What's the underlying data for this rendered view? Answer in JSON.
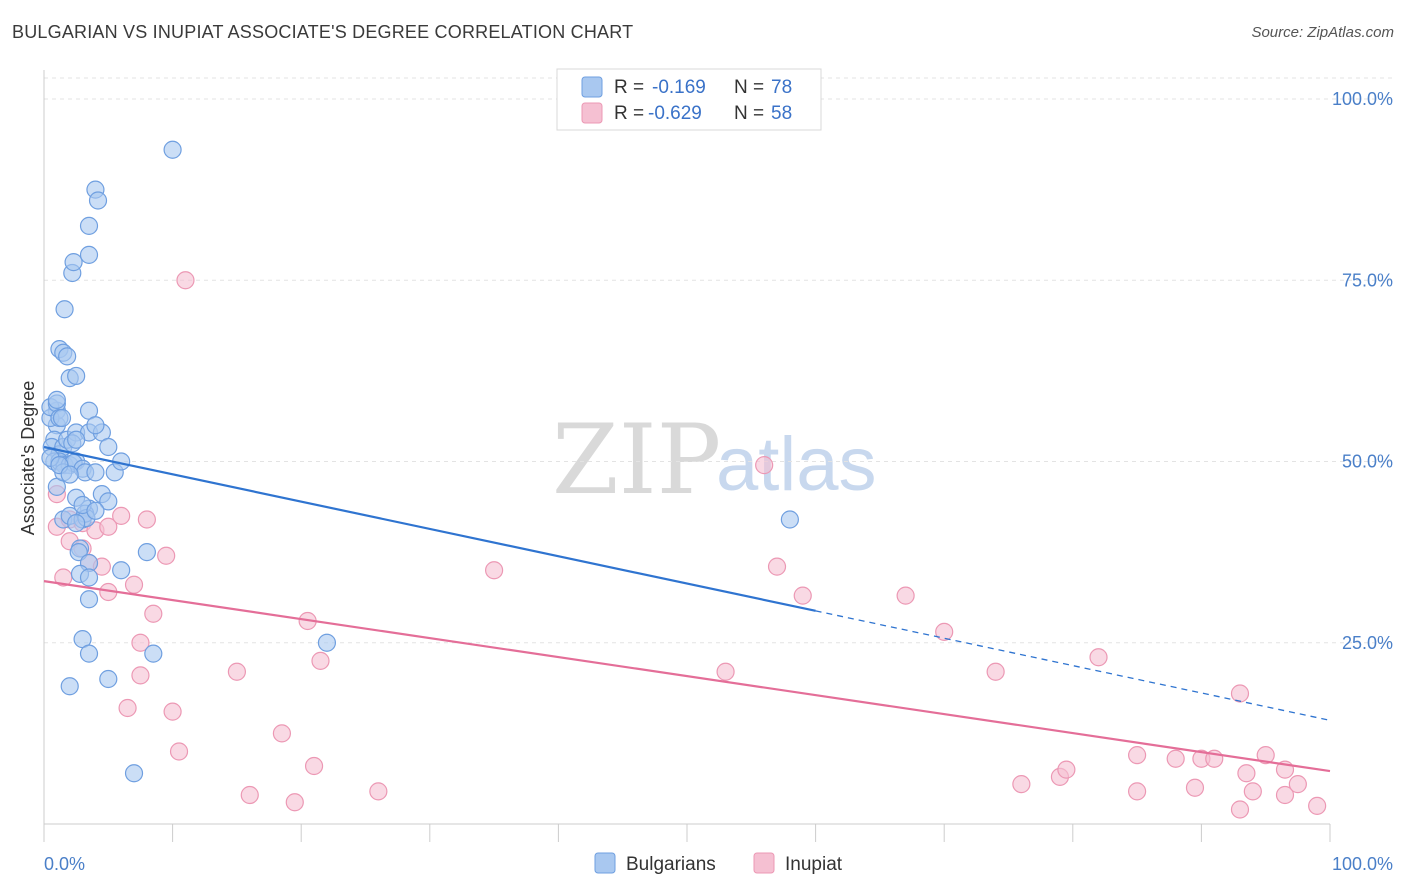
{
  "title": "BULGARIAN VS INUPIAT ASSOCIATE'S DEGREE CORRELATION CHART",
  "source": "Source: ZipAtlas.com",
  "watermark": {
    "zip": "ZIP",
    "atlas": "atlas"
  },
  "colors": {
    "blue_fill": "#a9c8f0",
    "blue_stroke": "#6f9fe0",
    "blue_line": "#2f74d0",
    "pink_fill": "#f5c0d2",
    "pink_stroke": "#ec98b4",
    "pink_line": "#e46e98",
    "grid": "#e3e3e3",
    "axis_text": "#4a7fc8"
  },
  "legend": {
    "r_label": "R =",
    "n_label": "N =",
    "rows": [
      {
        "r": "-0.169",
        "n": "78"
      },
      {
        "r": "-0.629",
        "n": "58"
      }
    ]
  },
  "chart_data": {
    "type": "scatter",
    "xlabel": "",
    "ylabel": "Associate's Degree",
    "xlim": [
      0,
      100
    ],
    "ylim": [
      0,
      104
    ],
    "x_tick_labels": [
      "0.0%",
      "100.0%"
    ],
    "y_tick_values": [
      25,
      50,
      75,
      100
    ],
    "y_tick_labels": [
      "25.0%",
      "50.0%",
      "75.0%",
      "100.0%"
    ],
    "grid": true,
    "series": [
      {
        "name": "Bulgarians",
        "color": "blue",
        "r": -0.169,
        "n": 78,
        "trend": {
          "x0": 0,
          "y0": 52.0,
          "x1": 60,
          "y1": 29.4,
          "dash_to_x": 100,
          "dash_to_y": 14.3
        },
        "points": [
          [
            1,
            55
          ],
          [
            1,
            57
          ],
          [
            0.5,
            56
          ],
          [
            0.5,
            57.5
          ],
          [
            1,
            58
          ],
          [
            1.2,
            56
          ],
          [
            1.4,
            56
          ],
          [
            0.8,
            53
          ],
          [
            0.6,
            52
          ],
          [
            1.2,
            51
          ],
          [
            1.5,
            52
          ],
          [
            1.8,
            53
          ],
          [
            2.5,
            54
          ],
          [
            3.5,
            54
          ],
          [
            4.5,
            54
          ],
          [
            2.2,
            52.5
          ],
          [
            2.5,
            53
          ],
          [
            0.8,
            50
          ],
          [
            1.2,
            50
          ],
          [
            1.6,
            49.5
          ],
          [
            2,
            49.5
          ],
          [
            2.5,
            50
          ],
          [
            2.3,
            49.8
          ],
          [
            3,
            49
          ],
          [
            3.2,
            48.5
          ],
          [
            4,
            48.5
          ],
          [
            5.5,
            48.5
          ],
          [
            1,
            46.5
          ],
          [
            1.5,
            48.5
          ],
          [
            2.5,
            45
          ],
          [
            4.5,
            45.5
          ],
          [
            5,
            44.5
          ],
          [
            3.5,
            43.5
          ],
          [
            1.5,
            42
          ],
          [
            2,
            42.5
          ],
          [
            3,
            42
          ],
          [
            3.2,
            42.8
          ],
          [
            3.3,
            42.2
          ],
          [
            2.5,
            41.5
          ],
          [
            2.8,
            38
          ],
          [
            2.7,
            37.5
          ],
          [
            3.5,
            36
          ],
          [
            6,
            35
          ],
          [
            2.8,
            34.5
          ],
          [
            3.5,
            34
          ],
          [
            3.5,
            31
          ],
          [
            8,
            37.5
          ],
          [
            3,
            25.5
          ],
          [
            3.5,
            23.5
          ],
          [
            8.5,
            23.5
          ],
          [
            22,
            25
          ],
          [
            5,
            20
          ],
          [
            2,
            19
          ],
          [
            7,
            7
          ],
          [
            1.6,
            71
          ],
          [
            2.2,
            76
          ],
          [
            2.3,
            77.5
          ],
          [
            3.5,
            78.5
          ],
          [
            3.5,
            82.5
          ],
          [
            4,
            87.5
          ],
          [
            4.2,
            86
          ],
          [
            10,
            93
          ],
          [
            1.2,
            65.5
          ],
          [
            1.5,
            65
          ],
          [
            1.8,
            64.5
          ],
          [
            2,
            61.5
          ],
          [
            2.5,
            61.8
          ],
          [
            3.5,
            57
          ],
          [
            4,
            55
          ],
          [
            5,
            52
          ],
          [
            6,
            50
          ],
          [
            0.5,
            50.5
          ],
          [
            1.2,
            49.5
          ],
          [
            2,
            48.2
          ],
          [
            3,
            44
          ],
          [
            4,
            43.2
          ],
          [
            58,
            42
          ],
          [
            1,
            58.5
          ]
        ]
      },
      {
        "name": "Inupiat",
        "color": "pink",
        "r": -0.629,
        "n": 58,
        "trend": {
          "x0": 0,
          "y0": 33.5,
          "x1": 100,
          "y1": 7.3
        },
        "points": [
          [
            1,
            45.5
          ],
          [
            1,
            41
          ],
          [
            2,
            42
          ],
          [
            3,
            41.5
          ],
          [
            4,
            40.5
          ],
          [
            5,
            41
          ],
          [
            6,
            42.5
          ],
          [
            8,
            42
          ],
          [
            2,
            39
          ],
          [
            3,
            38
          ],
          [
            3.5,
            36
          ],
          [
            4.5,
            35.5
          ],
          [
            1.5,
            34
          ],
          [
            5,
            32
          ],
          [
            7,
            33
          ],
          [
            9.5,
            37
          ],
          [
            8.5,
            29
          ],
          [
            7.5,
            25
          ],
          [
            7.5,
            20.5
          ],
          [
            6.5,
            16
          ],
          [
            10,
            15.5
          ],
          [
            10.5,
            10
          ],
          [
            11,
            75
          ],
          [
            15,
            21
          ],
          [
            16,
            4
          ],
          [
            18.5,
            12.5
          ],
          [
            19.5,
            3
          ],
          [
            20.5,
            28
          ],
          [
            21,
            8
          ],
          [
            21.5,
            22.5
          ],
          [
            26,
            4.5
          ],
          [
            35,
            35
          ],
          [
            53,
            21
          ],
          [
            56,
            49.5
          ],
          [
            57,
            35.5
          ],
          [
            59,
            31.5
          ],
          [
            67,
            31.5
          ],
          [
            70,
            26.5
          ],
          [
            74,
            21
          ],
          [
            76,
            5.5
          ],
          [
            79,
            6.5
          ],
          [
            79.5,
            7.5
          ],
          [
            82,
            23
          ],
          [
            85,
            9.5
          ],
          [
            85,
            4.5
          ],
          [
            88,
            9
          ],
          [
            89.5,
            5
          ],
          [
            90,
            9
          ],
          [
            91,
            9
          ],
          [
            93,
            18
          ],
          [
            93,
            2
          ],
          [
            93.5,
            7
          ],
          [
            94,
            4.5
          ],
          [
            95,
            9.5
          ],
          [
            96.5,
            7.5
          ],
          [
            96.5,
            4
          ],
          [
            97.5,
            5.5
          ],
          [
            99,
            2.5
          ]
        ]
      }
    ]
  }
}
